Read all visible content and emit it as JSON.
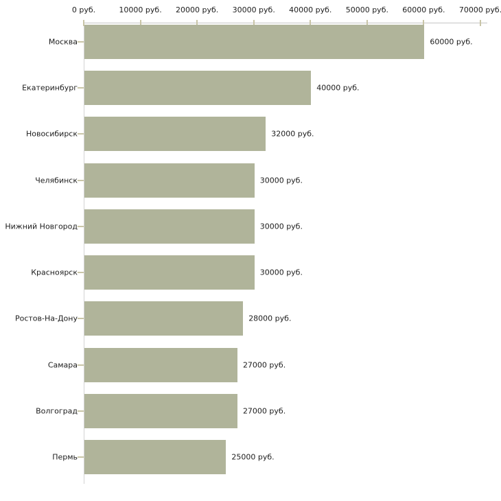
{
  "chart_data": {
    "type": "bar",
    "orientation": "horizontal",
    "title": "",
    "xlabel": "",
    "ylabel": "",
    "unit": "руб.",
    "categories": [
      "Москва",
      "Екатеринбург",
      "Новосибирск",
      "Челябинск",
      "Нижний Новгород",
      "Красноярск",
      "Ростов-На-Дону",
      "Самара",
      "Волгоград",
      "Пермь"
    ],
    "values": [
      60000,
      40000,
      32000,
      30000,
      30000,
      30000,
      28000,
      27000,
      27000,
      25000
    ],
    "value_labels": [
      "60000 руб.",
      "40000 руб.",
      "32000 руб.",
      "30000 руб.",
      "30000 руб.",
      "30000 руб.",
      "28000 руб.",
      "27000 руб.",
      "27000 руб.",
      "25000 руб."
    ],
    "x_ticks": [
      0,
      10000,
      20000,
      30000,
      40000,
      50000,
      60000,
      70000
    ],
    "x_tick_labels": [
      "0 руб.",
      "10000 руб.",
      "20000 руб.",
      "30000 руб.",
      "40000 руб.",
      "50000 руб.",
      "60000 руб.",
      "70000 руб."
    ],
    "xlim": [
      0,
      70000
    ],
    "grid": false,
    "legend_position": "none",
    "colors": {
      "bar_fill": "#b0b49a",
      "axis_line": "#c6c6c6",
      "tick_mark": "#c9c5a7",
      "text": "#1c1c1c",
      "background": "#ffffff"
    }
  }
}
